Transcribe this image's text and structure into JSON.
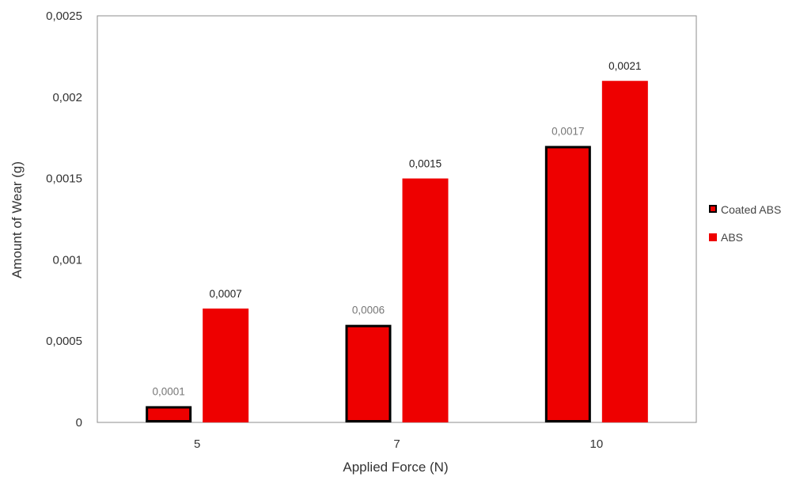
{
  "chart_data": {
    "type": "bar",
    "title": "",
    "xlabel": "Applied Force (N)",
    "ylabel": "Amount of Wear (g)",
    "categories": [
      "5",
      "7",
      "10"
    ],
    "ylim": [
      0,
      0.0025
    ],
    "yticks": [
      0,
      0.0005,
      0.001,
      0.0015,
      0.002,
      0.0025
    ],
    "ytick_labels": [
      "0",
      "0,0005",
      "0,001",
      "0,0015",
      "0,002",
      "0,0025"
    ],
    "grid": false,
    "legend_position": "right",
    "series": [
      {
        "name": "Coated ABS",
        "values": [
          0.0001,
          0.0006,
          0.0017
        ],
        "labels": [
          "0,0001",
          "0,0006",
          "0,0017"
        ],
        "fill": "#ee0000",
        "stroke": "#000000",
        "label_color": "#777777"
      },
      {
        "name": "ABS",
        "values": [
          0.0007,
          0.0015,
          0.0021
        ],
        "labels": [
          "0,0007",
          "0,0015",
          "0,0021"
        ],
        "fill": "#ee0000",
        "stroke": "none",
        "label_color": "#222222"
      }
    ]
  }
}
